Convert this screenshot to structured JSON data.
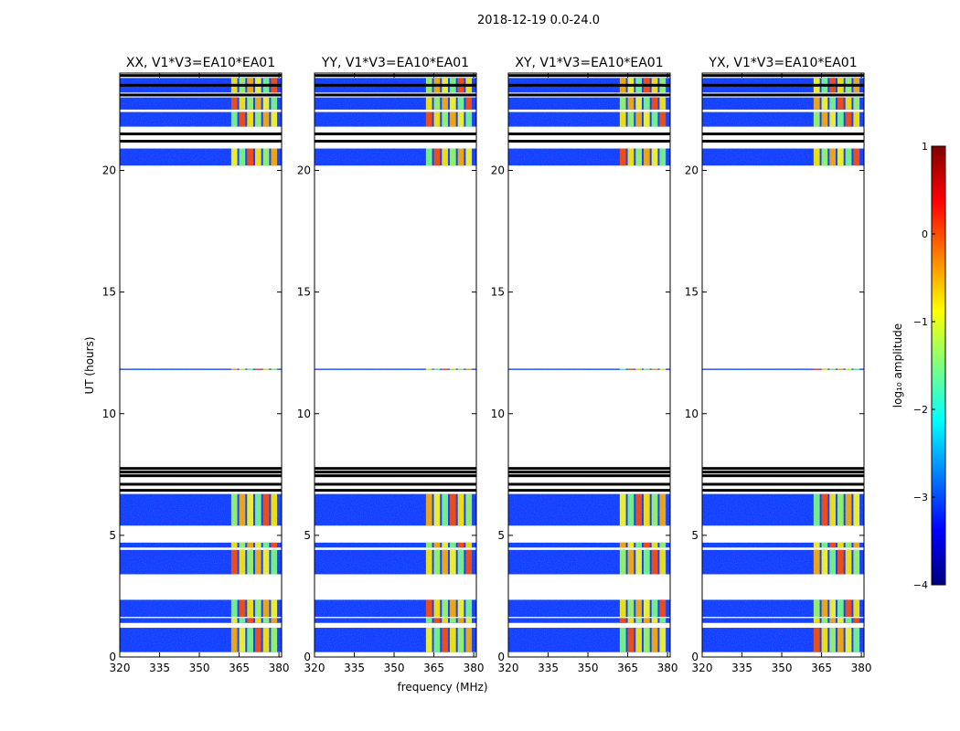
{
  "figure": {
    "suptitle": "2018-12-19 0.0-24.0",
    "xlabel": "frequency (MHz)",
    "ylabel": "UT (hours)"
  },
  "colorbar": {
    "label": "log₁₀ amplitude",
    "ticks": [
      "1",
      "0",
      "−1",
      "−2",
      "−3",
      "−4"
    ],
    "tick_values": [
      1,
      0,
      -1,
      -2,
      -3,
      -4
    ],
    "range": [
      -4,
      1
    ],
    "colors": [
      "#00007f",
      "#0000ff",
      "#007fff",
      "#00ffff",
      "#7fff7f",
      "#ffff00",
      "#ff7f00",
      "#ff0000",
      "#7f0000"
    ]
  },
  "chart_data": {
    "type": "heatmap",
    "x_ticks": [
      320,
      335,
      350,
      365,
      380
    ],
    "y_ticks": [
      0,
      5,
      10,
      15,
      20
    ],
    "xlim": [
      320,
      381
    ],
    "ylim": [
      0,
      24
    ],
    "panels": [
      {
        "title": "XX, V1*V3=EA10*EA01"
      },
      {
        "title": "YY, V1*V3=EA10*EA01"
      },
      {
        "title": "XY, V1*V3=EA10*EA01"
      },
      {
        "title": "YX, V1*V3=EA10*EA01"
      }
    ],
    "data_blocks_hours": [
      [
        0.2,
        1.2
      ],
      [
        1.4,
        1.6
      ],
      [
        1.65,
        2.35
      ],
      [
        3.4,
        4.4
      ],
      [
        4.5,
        4.7
      ],
      [
        5.4,
        6.7
      ],
      [
        11.8,
        11.85
      ],
      [
        20.2,
        20.9
      ],
      [
        21.8,
        22.4
      ],
      [
        22.5,
        23.0
      ],
      [
        23.2,
        23.8
      ]
    ],
    "rfi_band_mhz": [
      362,
      380
    ],
    "gap_lines_hours": [
      6.85,
      7.1,
      7.45,
      7.6,
      7.75,
      21.2,
      21.5,
      23.1,
      23.5,
      23.9
    ]
  }
}
